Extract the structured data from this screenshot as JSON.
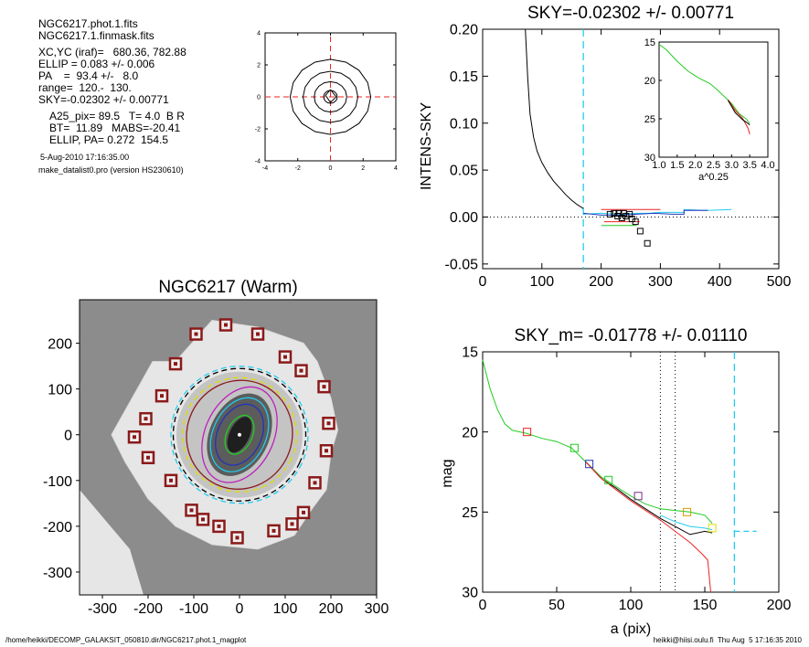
{
  "info": {
    "file1": "NGC6217.phot.1.fits",
    "file2": "NGC6217.1.finmask.fits",
    "xcyc": "XC,YC (iraf)=   680.36, 782.88",
    "ellip": "ELLIP = 0.083 +/- 0.006",
    "pa": "PA    =  93.4 +/-   8.0",
    "range": "range=  120.-  130.",
    "sky": "SKY=-0.02302 +/- 0.00771",
    "a25": "A25_pix= 89.5   T= 4.0  B R",
    "bt": "BT=  11.89   MABS=-20.41",
    "ellippa": "ELLIP, PA= 0.272  154.5",
    "date": "5-Aug-2010 17:16:35.00",
    "program": "make_datalist0.pro (version HS230610)"
  },
  "footer": {
    "left": "/home/heikki/DECOMP_GALAKSIT_050810.dir/NGC6217.phot.1_magplot",
    "right": "heikki@hiisi.oulu.fi  Thu Aug  5 17:16:35 2010"
  },
  "colors": {
    "black": "#000000",
    "cyan": "#22ccee",
    "green": "#22cc22",
    "red": "#ee2222",
    "blue": "#2233bb",
    "orange": "#dd9900",
    "magenta": "#bb22bb",
    "darkred": "#8b1a1a",
    "purple": "#7a2a8a",
    "yellow": "#dddd00",
    "grey_bg": "#8c8c8c"
  },
  "chart_data": [
    {
      "id": "contour",
      "type": "line",
      "title": "",
      "xlim": [
        -4,
        4
      ],
      "ylim": [
        -4,
        4
      ],
      "xticks": [
        "-4",
        "-2",
        "0",
        "2",
        "4"
      ],
      "yticks": [
        "-4",
        "-2",
        "0",
        "2",
        "4"
      ],
      "contour_radii": [
        0.4,
        0.95,
        1.6,
        2.35
      ],
      "inner_diamond": [
        [
          0,
          0.45
        ],
        [
          0.35,
          0
        ],
        [
          0,
          -0.35
        ],
        [
          -0.3,
          0.1
        ]
      ]
    },
    {
      "id": "sky",
      "type": "line",
      "title": "SKY=-0.02302 +/- 0.00771",
      "ylabel": "INTENS-SKY",
      "xlabel": "",
      "xlim": [
        0,
        500
      ],
      "ylim": [
        -0.055,
        0.2
      ],
      "xticks": [
        "0",
        "100",
        "200",
        "300",
        "400",
        "500"
      ],
      "yticks": [
        "-0.05",
        "0.00",
        "0.05",
        "0.10",
        "0.15",
        "0.20"
      ],
      "vline_cyan": 170,
      "series": [
        {
          "color": "black",
          "points": [
            [
              72,
              0.2
            ],
            [
              76,
              0.15
            ],
            [
              80,
              0.11
            ],
            [
              86,
              0.085
            ],
            [
              92,
              0.07
            ],
            [
              100,
              0.058
            ],
            [
              110,
              0.047
            ],
            [
              120,
              0.038
            ],
            [
              130,
              0.031
            ],
            [
              140,
              0.024
            ],
            [
              150,
              0.018
            ],
            [
              160,
              0.013
            ],
            [
              170,
              0.009
            ]
          ]
        },
        {
          "color": "cyan",
          "points": [
            [
              170,
              0.003
            ],
            [
              200,
              0.004
            ],
            [
              230,
              0.003
            ],
            [
              260,
              0.004
            ],
            [
              280,
              0.004
            ],
            [
              300,
              0.005
            ],
            [
              340,
              0.005
            ],
            [
              340,
              0.008
            ],
            [
              380,
              0.007
            ],
            [
              420,
              0.008
            ]
          ]
        },
        {
          "color": "blue",
          "points": [
            [
              170,
              0.004
            ],
            [
              200,
              0.002
            ],
            [
              230,
              0.002
            ],
            [
              260,
              0.003
            ],
            [
              290,
              0.004
            ],
            [
              320,
              0.003
            ],
            [
              340,
              0.003
            ],
            [
              340,
              0.007
            ],
            [
              380,
              0.007
            ]
          ]
        }
      ],
      "squares": [
        [
          215,
          0.003
        ],
        [
          222,
          0.004
        ],
        [
          230,
          0.004
        ],
        [
          238,
          0.004
        ],
        [
          242,
          0.001
        ],
        [
          248,
          0.003
        ],
        [
          252,
          -0.002
        ],
        [
          228,
          0.001
        ],
        [
          235,
          -0.001
        ],
        [
          258,
          -0.005
        ],
        [
          266,
          -0.015
        ],
        [
          278,
          -0.028
        ]
      ],
      "err_red": [
        [
          200,
          0.008,
          300
        ],
        [
          205,
          -0.005,
          265
        ]
      ],
      "err_green": [
        [
          200,
          -0.009,
          260
        ]
      ]
    },
    {
      "id": "inset",
      "type": "line",
      "title": "",
      "xlabel": "a^0.25",
      "xlim": [
        1.0,
        4.0
      ],
      "ylim": [
        15,
        30
      ],
      "xticks": [
        "1.0",
        "1.5",
        "2.0",
        "2.5",
        "3.0",
        "3.5",
        "4.0"
      ],
      "yticks": [
        "15",
        "20",
        "25",
        "30"
      ],
      "series": [
        {
          "color": "green",
          "points": [
            [
              1.0,
              15.3
            ],
            [
              1.2,
              16.0
            ],
            [
              1.5,
              17.5
            ],
            [
              1.8,
              18.8
            ],
            [
              2.1,
              19.7
            ],
            [
              2.4,
              20.4
            ],
            [
              2.6,
              21.2
            ],
            [
              2.8,
              22.1
            ],
            [
              3.0,
              23.0
            ],
            [
              3.2,
              24.3
            ],
            [
              3.4,
              25.0
            ],
            [
              3.5,
              25.6
            ]
          ]
        },
        {
          "color": "red",
          "points": [
            [
              2.9,
              22.5
            ],
            [
              3.1,
              23.9
            ],
            [
              3.3,
              24.9
            ],
            [
              3.45,
              26.2
            ],
            [
              3.5,
              27.0
            ]
          ]
        },
        {
          "color": "black",
          "points": [
            [
              2.9,
              22.6
            ],
            [
              3.1,
              24.2
            ],
            [
              3.3,
              25.1
            ],
            [
              3.45,
              25.6
            ],
            [
              3.5,
              25.8
            ]
          ]
        }
      ]
    },
    {
      "id": "image",
      "type": "scatter",
      "title": "NGC6217 (Warm)",
      "xlim": [
        -350,
        300
      ],
      "ylim": [
        -350,
        295
      ],
      "xticks": [
        "-300",
        "-200",
        "-100",
        "0",
        "100",
        "200",
        "300"
      ],
      "yticks": [
        "200",
        "100",
        "0",
        "-100",
        "-200",
        "-300"
      ],
      "markers": [
        [
          -30,
          240
        ],
        [
          40,
          220
        ],
        [
          -95,
          220
        ],
        [
          100,
          170
        ],
        [
          -140,
          155
        ],
        [
          135,
          140
        ],
        [
          -170,
          85
        ],
        [
          185,
          105
        ],
        [
          -205,
          35
        ],
        [
          195,
          25
        ],
        [
          -230,
          -5
        ],
        [
          190,
          -35
        ],
        [
          -200,
          -50
        ],
        [
          165,
          -105
        ],
        [
          -150,
          -100
        ],
        [
          140,
          -170
        ],
        [
          -105,
          -165
        ],
        [
          -80,
          -185
        ],
        [
          -45,
          -200
        ],
        [
          -5,
          -225
        ],
        [
          75,
          -210
        ],
        [
          115,
          -195
        ]
      ],
      "ellipses": [
        {
          "color": "black",
          "rx": 145,
          "ry": 145,
          "dash": true
        },
        {
          "color": "cyan",
          "rx": 150,
          "ry": 150,
          "dash": true
        },
        {
          "color": "yellow",
          "rx": 125,
          "ry": 125,
          "dash": true
        },
        {
          "color": "darkred",
          "rx": 115,
          "ry": 120,
          "dash": false
        },
        {
          "color": "magenta",
          "rx": 75,
          "ry": 110,
          "dash": false
        },
        {
          "color": "cyan",
          "rx": 58,
          "ry": 85,
          "dash": false
        },
        {
          "color": "blue",
          "rx": 48,
          "ry": 70,
          "dash": false
        },
        {
          "color": "green",
          "rx": 28,
          "ry": 45,
          "dash": false
        }
      ]
    },
    {
      "id": "mag",
      "type": "line",
      "title": "SKY_m= -0.01778 +/- 0.01110",
      "xlabel": "a (pix)",
      "ylabel": "mag",
      "xlim": [
        0,
        200
      ],
      "ylim": [
        30,
        15
      ],
      "xticks": [
        "0",
        "50",
        "100",
        "150",
        "200"
      ],
      "yticks": [
        "15",
        "20",
        "25",
        "30"
      ],
      "vlines_dotted": [
        120,
        130
      ],
      "vline_cyan": 170,
      "hline_cyan": {
        "x0": 170,
        "x1": 185,
        "y": 26.2
      },
      "series": [
        {
          "color": "green",
          "points": [
            [
              0,
              15.5
            ],
            [
              5,
              17.3
            ],
            [
              10,
              18.6
            ],
            [
              15,
              19.5
            ],
            [
              20,
              19.9
            ],
            [
              30,
              20.1
            ],
            [
              40,
              20.4
            ],
            [
              50,
              20.6
            ],
            [
              60,
              21.0
            ],
            [
              70,
              21.9
            ],
            [
              80,
              22.8
            ],
            [
              90,
              23.4
            ],
            [
              100,
              24.0
            ],
            [
              110,
              24.5
            ],
            [
              120,
              24.8
            ],
            [
              130,
              24.9
            ],
            [
              140,
              25.0
            ],
            [
              150,
              25.2
            ],
            [
              155,
              25.7
            ]
          ]
        },
        {
          "color": "black",
          "points": [
            [
              70,
              21.9
            ],
            [
              80,
              22.9
            ],
            [
              90,
              23.5
            ],
            [
              100,
              24.2
            ],
            [
              110,
              24.8
            ],
            [
              120,
              25.4
            ],
            [
              130,
              25.9
            ],
            [
              140,
              26.4
            ],
            [
              150,
              26.2
            ],
            [
              155,
              26.3
            ]
          ]
        },
        {
          "color": "red",
          "points": [
            [
              70,
              21.9
            ],
            [
              80,
              22.9
            ],
            [
              90,
              23.6
            ],
            [
              100,
              24.3
            ],
            [
              110,
              24.9
            ],
            [
              120,
              25.5
            ],
            [
              130,
              26.2
            ],
            [
              140,
              26.9
            ],
            [
              148,
              27.6
            ],
            [
              152,
              28.0
            ],
            [
              154,
              30.0
            ]
          ]
        },
        {
          "color": "cyan",
          "points": [
            [
              120,
              25.2
            ],
            [
              130,
              25.6
            ],
            [
              140,
              25.9
            ],
            [
              150,
              26.0
            ],
            [
              155,
              26.1
            ]
          ]
        }
      ],
      "squares": [
        {
          "x": 30,
          "y": 20.0,
          "color": "red"
        },
        {
          "x": 62,
          "y": 21.0,
          "color": "green"
        },
        {
          "x": 72,
          "y": 22.0,
          "color": "blue"
        },
        {
          "x": 85,
          "y": 23.0,
          "color": "green"
        },
        {
          "x": 105,
          "y": 24.0,
          "color": "purple"
        },
        {
          "x": 138,
          "y": 25.0,
          "color": "orange"
        },
        {
          "x": 155,
          "y": 26.0,
          "color": "yellow"
        }
      ]
    }
  ]
}
